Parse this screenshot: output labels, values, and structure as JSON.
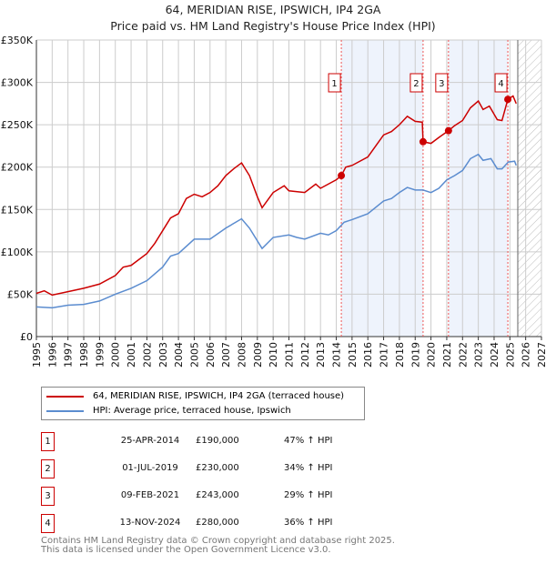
{
  "chart_data": {
    "type": "line",
    "title": "64, MERIDIAN RISE, IPSWICH, IP4 2GA",
    "subtitle": "Price paid vs. HM Land Registry's House Price Index (HPI)",
    "xlim": [
      1995,
      2027
    ],
    "ylim": [
      0,
      350000
    ],
    "x_ticks": [
      "1995",
      "1996",
      "1997",
      "1998",
      "1999",
      "2000",
      "2001",
      "2002",
      "2003",
      "2004",
      "2005",
      "2006",
      "2007",
      "2008",
      "2009",
      "2010",
      "2011",
      "2012",
      "2013",
      "2014",
      "2015",
      "2016",
      "2017",
      "2018",
      "2019",
      "2020",
      "2021",
      "2022",
      "2023",
      "2024",
      "2025",
      "2026",
      "2027"
    ],
    "y_ticks": [
      {
        "v": 0,
        "label": "£0"
      },
      {
        "v": 50000,
        "label": "£50K"
      },
      {
        "v": 100000,
        "label": "£100K"
      },
      {
        "v": 150000,
        "label": "£150K"
      },
      {
        "v": 200000,
        "label": "£200K"
      },
      {
        "v": 250000,
        "label": "£250K"
      },
      {
        "v": 300000,
        "label": "£300K"
      },
      {
        "v": 350000,
        "label": "£350K"
      }
    ],
    "grid": true,
    "shaded_ranges": [
      [
        2014.32,
        2019.5
      ],
      [
        2021.11,
        2024.87
      ]
    ],
    "forecast_from": 2025.5,
    "series": [
      {
        "name": "64, MERIDIAN RISE, IPSWICH, IP4 2GA (terraced house)",
        "color": "#cc0000",
        "x": [
          1995,
          1995.5,
          1996,
          1997,
          1998,
          1999,
          2000,
          2000.5,
          2001,
          2002,
          2002.5,
          2003,
          2003.5,
          2004,
          2004.5,
          2005,
          2005.5,
          2006,
          2006.5,
          2007,
          2007.5,
          2008,
          2008.5,
          2009,
          2009.3,
          2010,
          2010.7,
          2011,
          2012,
          2012.7,
          2013,
          2014,
          2014.32,
          2014.6,
          2015,
          2016,
          2016.5,
          2017,
          2017.5,
          2018,
          2018.5,
          2019,
          2019.45,
          2019.5,
          2020,
          2020.5,
          2021.11,
          2021.5,
          2022,
          2022.5,
          2023,
          2023.3,
          2023.7,
          2024.2,
          2024.5,
          2024.87,
          2025.2,
          2025.4
        ],
        "y": [
          51000,
          54000,
          49000,
          53000,
          57000,
          62000,
          72000,
          82000,
          84000,
          98000,
          110000,
          125000,
          140000,
          145000,
          163000,
          168000,
          165000,
          170000,
          178000,
          190000,
          198000,
          205000,
          190000,
          165000,
          152000,
          170000,
          178000,
          172000,
          170000,
          180000,
          175000,
          185000,
          190000,
          200000,
          202000,
          212000,
          225000,
          238000,
          242000,
          250000,
          260000,
          254000,
          253000,
          230000,
          228000,
          235000,
          243000,
          249000,
          255000,
          270000,
          278000,
          268000,
          272000,
          256000,
          255000,
          280000,
          284000,
          275000
        ]
      },
      {
        "name": "HPI: Average price, terraced house, Ipswich",
        "color": "#5b8ccf",
        "x": [
          1995,
          1996,
          1997,
          1998,
          1999,
          2000,
          2001,
          2002,
          2003,
          2003.5,
          2004,
          2005,
          2006,
          2007,
          2008,
          2008.5,
          2009.3,
          2010,
          2011,
          2011.5,
          2012,
          2013,
          2013.5,
          2014,
          2014.5,
          2015,
          2016,
          2017,
          2017.5,
          2018,
          2018.5,
          2019,
          2019.5,
          2020,
          2020.5,
          2021,
          2021.5,
          2022,
          2022.5,
          2023,
          2023.3,
          2023.8,
          2024.2,
          2024.5,
          2024.9,
          2025.3,
          2025.4
        ],
        "y": [
          35000,
          34000,
          37000,
          38000,
          42000,
          50000,
          57000,
          66000,
          82000,
          95000,
          98000,
          115000,
          115000,
          128000,
          139000,
          128000,
          104000,
          117000,
          120000,
          117000,
          115000,
          122000,
          120000,
          125000,
          135000,
          138000,
          145000,
          160000,
          163000,
          170000,
          176000,
          173000,
          173000,
          170000,
          175000,
          185000,
          190000,
          196000,
          210000,
          215000,
          208000,
          210000,
          198000,
          198000,
          206000,
          207000,
          202000
        ]
      }
    ],
    "sales": [
      {
        "label": "1",
        "date": "25-APR-2014",
        "x": 2014.32,
        "price": "£190,000",
        "value": 190000,
        "hpi": "47% ↑ HPI"
      },
      {
        "label": "2",
        "date": "01-JUL-2019",
        "x": 2019.5,
        "price": "£230,000",
        "value": 230000,
        "hpi": "34% ↑ HPI"
      },
      {
        "label": "3",
        "date": "09-FEB-2021",
        "x": 2021.11,
        "price": "£243,000",
        "value": 243000,
        "hpi": "29% ↑ HPI"
      },
      {
        "label": "4",
        "date": "13-NOV-2024",
        "x": 2024.87,
        "price": "£280,000",
        "value": 280000,
        "hpi": "36% ↑ HPI"
      }
    ],
    "legend_placement": "below"
  },
  "footer": {
    "line1": "Contains HM Land Registry data © Crown copyright and database right 2025.",
    "line2": "This data is licensed under the Open Government Licence v3.0."
  }
}
